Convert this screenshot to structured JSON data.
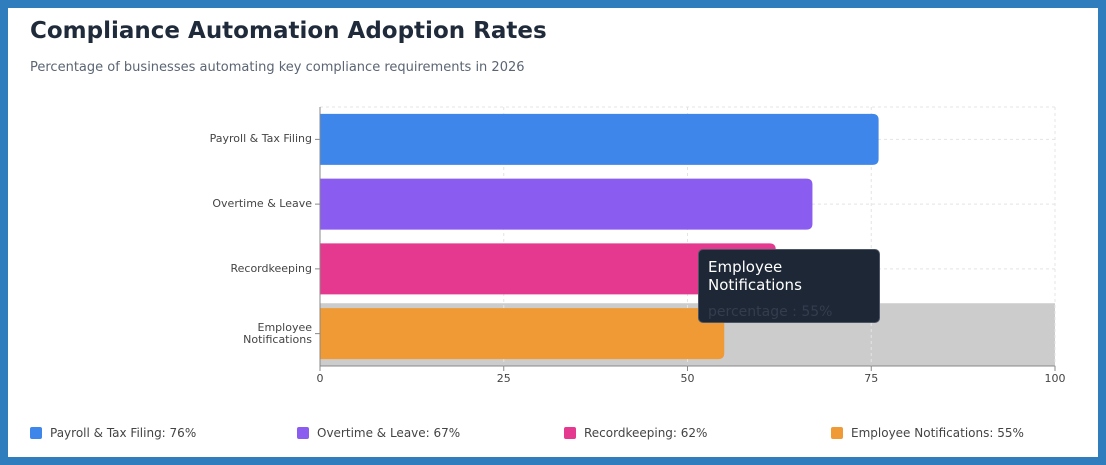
{
  "chart_data": {
    "type": "bar",
    "orientation": "horizontal",
    "title": "Compliance Automation Adoption Rates",
    "subtitle": "Percentage of businesses automating key compliance requirements in 2026",
    "categories": [
      "Payroll & Tax Filing",
      "Overtime & Leave",
      "Recordkeeping",
      "Employee Notifications"
    ],
    "series": [
      {
        "name": "percentage",
        "values": [
          76,
          67,
          62,
          55
        ],
        "colors": [
          "#3f86ea",
          "#8b5cf0",
          "#e5388f",
          "#f09a35"
        ]
      }
    ],
    "xlim": [
      0,
      100
    ],
    "xticks": [
      0,
      25,
      50,
      75,
      100
    ],
    "grid": true,
    "legend_labels": [
      "Payroll & Tax Filing: 76%",
      "Overtime & Leave: 67%",
      "Recordkeeping: 62%",
      "Employee Notifications: 55%"
    ],
    "tooltip": {
      "title": "Employee Notifications",
      "text": "percentage : 55%"
    }
  }
}
